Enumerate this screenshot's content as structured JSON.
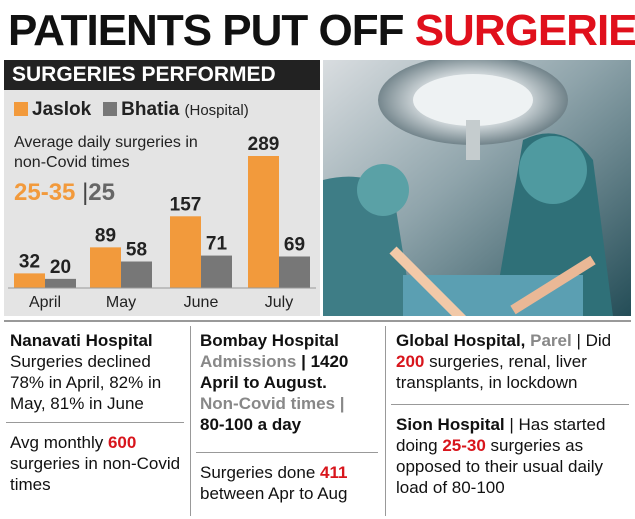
{
  "headline": {
    "part1": "PATIENTS PUT OFF ",
    "part2": "SURGERIES"
  },
  "chart_data": {
    "type": "bar",
    "title": "SURGERIES PERFORMED",
    "legend": {
      "a": "Jaslok",
      "b": "Bhatia",
      "suffix": "(Hospital)"
    },
    "note": "Average daily surgeries in non-Covid times",
    "avg": {
      "a": "25-35",
      "sep": "|",
      "b": "25"
    },
    "categories": [
      "April",
      "May",
      "June",
      "July"
    ],
    "series": [
      {
        "name": "Jaslok",
        "values": [
          32,
          89,
          157,
          289
        ],
        "color": "#f29a3c"
      },
      {
        "name": "Bhatia",
        "values": [
          20,
          58,
          71,
          69
        ],
        "color": "#777777"
      }
    ],
    "ylim": [
      0,
      289
    ]
  },
  "boxes": {
    "nanavati": {
      "title": "Nanavati Hospital",
      "body": "Surgeries declined 78% in April, 82% in May, 81% in June",
      "avg_pre": "Avg monthly ",
      "avg_num": "600",
      "avg_post": " surgeries in non-Covid times"
    },
    "bombay": {
      "title": "Bombay Hospital",
      "adm": "Admissions",
      "adm_val": "| 1420 April to August.",
      "noncovid": "Non-Covid times |",
      "noncovid_val": "80-100 a day",
      "done_pre": "Surgeries done ",
      "done_num": "411",
      "done_post": " between Apr to Aug"
    },
    "global": {
      "title": "Global Hospital, ",
      "place": "Parel",
      "b1": " | Did ",
      "num": "200",
      "b2": " surgeries, renal, liver transplants, in lockdown"
    },
    "sion": {
      "title": "Sion Hospital",
      "b1": " | Has started doing ",
      "num": "25-30",
      "b2": " surgeries as opposed to their usual daily load of 80-100"
    }
  }
}
